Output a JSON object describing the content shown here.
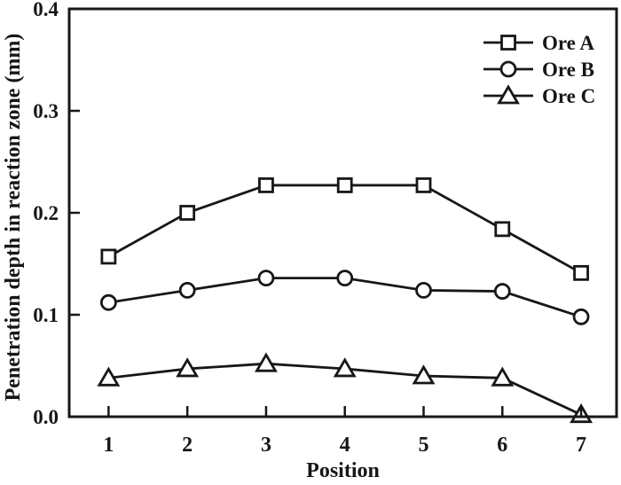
{
  "figure": {
    "background": "#ffffff",
    "ink_color": "#171717"
  },
  "chart_data": {
    "type": "line",
    "title": "",
    "xlabel": "Position",
    "ylabel": "Penetration depth in reaction zone (mm)",
    "x": [
      1,
      2,
      3,
      4,
      5,
      6,
      7
    ],
    "xlim": [
      0.5,
      7.45
    ],
    "ylim": [
      0.0,
      0.4
    ],
    "xticks": {
      "values": [
        1,
        2,
        3,
        4,
        5,
        6,
        7
      ],
      "labels": [
        "1",
        "2",
        "3",
        "4",
        "5",
        "6",
        "7"
      ]
    },
    "yticks": {
      "values": [
        0.0,
        0.1,
        0.2,
        0.3,
        0.4
      ],
      "labels": [
        "0.0",
        "0.1",
        "0.2",
        "0.3",
        "0.4"
      ]
    },
    "grid": false,
    "legend_position": "top-right-inside",
    "series": [
      {
        "name": "Ore A",
        "marker": "square",
        "values": [
          0.157,
          0.2,
          0.227,
          0.227,
          0.227,
          0.184,
          0.141
        ]
      },
      {
        "name": "Ore B",
        "marker": "circle",
        "values": [
          0.112,
          0.124,
          0.136,
          0.136,
          0.124,
          0.123,
          0.098
        ]
      },
      {
        "name": "Ore C",
        "marker": "triangle",
        "values": [
          0.038,
          0.047,
          0.052,
          0.047,
          0.04,
          0.038,
          0.002
        ]
      }
    ]
  }
}
